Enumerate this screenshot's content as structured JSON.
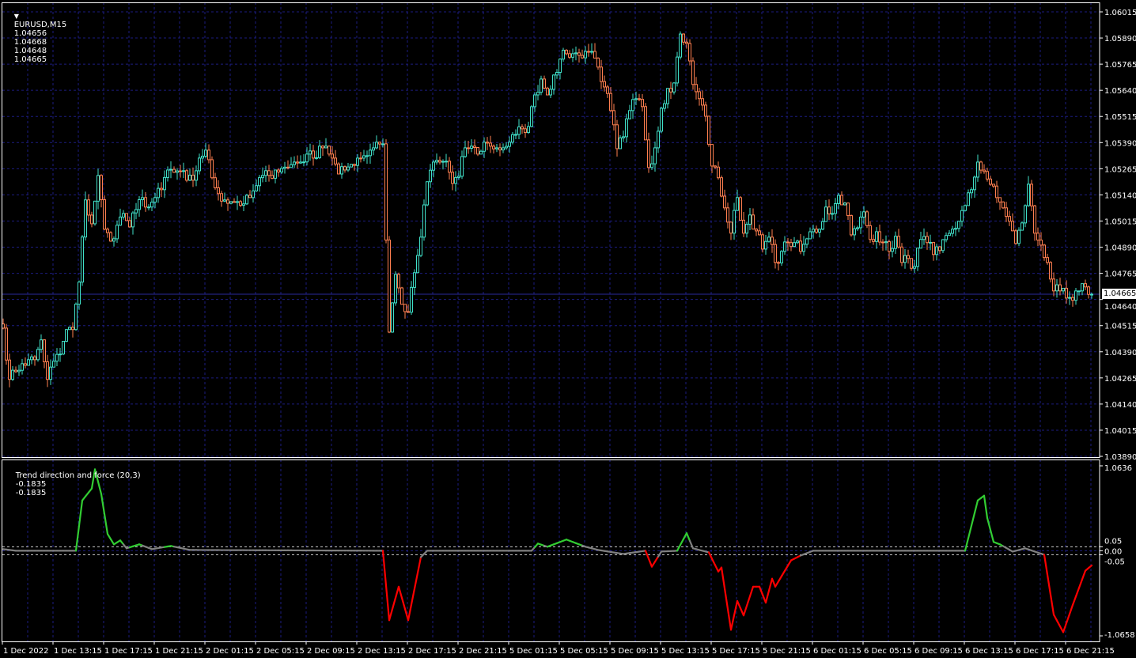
{
  "header": {
    "menu_icon": "triangle-down-icon",
    "symbol": "EURUSD,M15",
    "open": "1.04656",
    "high": "1.04668",
    "low": "1.04648",
    "close": "1.04665"
  },
  "indicator_header": {
    "name": "Trend direction and force (20,3)",
    "value1": "-0.1835",
    "value2": "-0.1835"
  },
  "colors": {
    "background": "#000000",
    "bull": "#40E0C8",
    "bear": "#FF7F50",
    "grid": "#1C1C80",
    "price_line": "#2A2A9A",
    "trend_up": "#32CD32",
    "trend_down": "#FF0000",
    "trend_flat": "#808080",
    "axis_text": "#FFFFFF"
  },
  "current_price_label": "1.04665",
  "chart_data": [
    {
      "type": "candlestick",
      "symbol": "EURUSD",
      "timeframe": "M15",
      "sample_note_bars_per_close": 2,
      "ylim": [
        1.0389,
        1.06015
      ],
      "y_ticks": [
        "1.06015",
        "1.05890",
        "1.05765",
        "1.05640",
        "1.05515",
        "1.05390",
        "1.05265",
        "1.05140",
        "1.05015",
        "1.04890",
        "1.04765",
        "1.04640",
        "1.04515",
        "1.04390",
        "1.04265",
        "1.04140",
        "1.04015",
        "1.03890"
      ],
      "x_ticks": [
        "1 Dec 2022",
        "1 Dec 13:15",
        "1 Dec 17:15",
        "1 Dec 21:15",
        "2 Dec 01:15",
        "2 Dec 05:15",
        "2 Dec 09:15",
        "2 Dec 13:15",
        "2 Dec 17:15",
        "2 Dec 21:15",
        "5 Dec 01:15",
        "5 Dec 05:15",
        "5 Dec 09:15",
        "5 Dec 13:15",
        "5 Dec 17:15",
        "5 Dec 21:15",
        "6 Dec 01:15",
        "6 Dec 05:15",
        "6 Dec 09:15",
        "6 Dec 13:15",
        "6 Dec 17:15",
        "6 Dec 21:15"
      ],
      "grid": true,
      "current_price": 1.04665,
      "closes": [
        1.04503,
        1.04258,
        1.04295,
        1.04333,
        1.04352,
        1.04352,
        1.04447,
        1.04258,
        1.04345,
        1.04379,
        1.04496,
        1.04496,
        1.04723,
        1.05116,
        1.05002,
        1.05233,
        1.04976,
        1.04919,
        1.04995,
        1.05051,
        1.04987,
        1.0507,
        1.05127,
        1.05082,
        1.05127,
        1.05165,
        1.05259,
        1.05248,
        1.05252,
        1.0521,
        1.0521,
        1.05316,
        1.05354,
        1.05222,
        1.05146,
        1.05116,
        1.05108,
        1.05108,
        1.05097,
        1.05127,
        1.05184,
        1.05233,
        1.05233,
        1.05259,
        1.05267,
        1.05271,
        1.05297,
        1.05297,
        1.05335,
        1.05316,
        1.05373,
        1.05373,
        1.05316,
        1.0524,
        1.05259,
        1.05286,
        1.05316,
        1.05327,
        1.05354,
        1.05392,
        1.05384,
        1.04484,
        1.0476,
        1.04617,
        1.04579,
        1.04768,
        1.04938,
        1.05203,
        1.05297,
        1.05297,
        1.05301,
        1.05195,
        1.05229,
        1.05365,
        1.05373,
        1.05335,
        1.05392,
        1.05373,
        1.05365,
        1.05365,
        1.05392,
        1.05429,
        1.05456,
        1.05467,
        1.05618,
        1.05694,
        1.05618,
        1.05713,
        1.05789,
        1.05815,
        1.05815,
        1.05807,
        1.05826,
        1.05826,
        1.05751,
        1.05656,
        1.05543,
        1.05361,
        1.05418,
        1.05543,
        1.056,
        1.05562,
        1.05271,
        1.05365,
        1.05554,
        1.05649,
        1.05675,
        1.05909,
        1.05864,
        1.05668,
        1.056,
        1.05516,
        1.05278,
        1.05222,
        1.05078,
        1.04957,
        1.05127,
        1.04957,
        1.05044,
        1.04968,
        1.04881,
        1.04938,
        1.04817,
        1.0487,
        1.04912,
        1.04912,
        1.0487,
        1.0493,
        1.04976,
        1.04976,
        1.05082,
        1.05051,
        1.05138,
        1.05101,
        1.04949,
        1.04983,
        1.05059,
        1.04927,
        1.04964,
        1.04912,
        1.0487,
        1.04942,
        1.04817,
        1.04836,
        1.04798,
        1.04927,
        1.04912,
        1.04855,
        1.04874,
        1.04946,
        1.04976,
        1.05014,
        1.05089,
        1.05165,
        1.05297,
        1.05252,
        1.05191,
        1.05127,
        1.05078,
        1.05014,
        1.04908,
        1.05006,
        1.05191,
        1.04957,
        1.049,
        1.04817,
        1.04681,
        1.04681,
        1.04647,
        1.04636,
        1.04681,
        1.047,
        1.04665
      ]
    },
    {
      "type": "line",
      "title": "Trend direction and force (20,3)",
      "ylim": [
        -1.0658,
        1.0636
      ],
      "y_ticks": [
        "1.0636",
        "0.05",
        "0.00",
        "-0.05",
        "-1.0658"
      ],
      "levels": [
        0.05,
        -0.05
      ],
      "points_bar_value": [
        [
          0,
          0.02
        ],
        [
          4,
          0
        ],
        [
          14,
          0
        ],
        [
          23,
          0
        ],
        [
          25,
          0.63
        ],
        [
          28,
          0.78
        ],
        [
          29,
          1.02
        ],
        [
          31,
          0.71
        ],
        [
          33,
          0.21
        ],
        [
          35,
          0.08
        ],
        [
          37,
          0.13
        ],
        [
          39,
          0.03
        ],
        [
          43,
          0.08
        ],
        [
          47,
          0.02
        ],
        [
          53,
          0.06
        ],
        [
          59,
          0.01
        ],
        [
          120,
          0
        ],
        [
          122,
          -0.87
        ],
        [
          125,
          -0.45
        ],
        [
          128,
          -0.87
        ],
        [
          132,
          -0.08
        ],
        [
          134,
          0
        ],
        [
          167,
          0
        ],
        [
          169,
          0.09
        ],
        [
          172,
          0.05
        ],
        [
          178,
          0.14
        ],
        [
          184,
          0.05
        ],
        [
          188,
          0.01
        ],
        [
          196,
          -0.04
        ],
        [
          203,
          0
        ],
        [
          205,
          -0.2
        ],
        [
          208,
          -0.01
        ],
        [
          213,
          0
        ],
        [
          216,
          0.22
        ],
        [
          218,
          0.03
        ],
        [
          223,
          -0.02
        ],
        [
          226,
          -0.26
        ],
        [
          227,
          -0.21
        ],
        [
          230,
          -0.99
        ],
        [
          232,
          -0.63
        ],
        [
          234,
          -0.81
        ],
        [
          237,
          -0.45
        ],
        [
          239,
          -0.45
        ],
        [
          241,
          -0.65
        ],
        [
          243,
          -0.35
        ],
        [
          244,
          -0.45
        ],
        [
          249,
          -0.12
        ],
        [
          252,
          -0.06
        ],
        [
          256,
          0
        ],
        [
          304,
          0
        ],
        [
          308,
          0.63
        ],
        [
          310,
          0.69
        ],
        [
          311,
          0.41
        ],
        [
          313,
          0.11
        ],
        [
          315,
          0.08
        ],
        [
          319,
          -0.01
        ],
        [
          323,
          0.03
        ],
        [
          329,
          -0.05
        ],
        [
          332,
          -0.8
        ],
        [
          335,
          -1.02
        ],
        [
          338,
          -0.68
        ],
        [
          342,
          -0.25
        ],
        [
          344,
          -0.1835
        ]
      ]
    }
  ]
}
